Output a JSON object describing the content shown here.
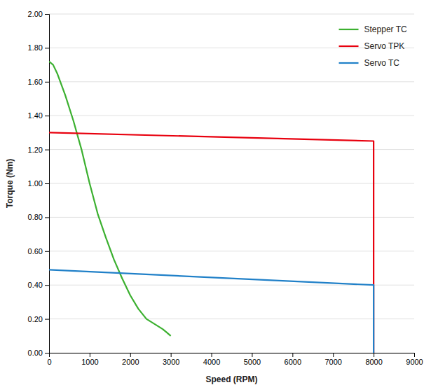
{
  "chart_data": {
    "type": "line",
    "xlabel": "Speed (RPM)",
    "ylabel": "Torque (Nm)",
    "xlim": [
      0,
      9000
    ],
    "ylim": [
      0.0,
      2.0
    ],
    "xticks": [
      0,
      1000,
      2000,
      3000,
      4000,
      5000,
      6000,
      7000,
      8000,
      9000
    ],
    "yticks": [
      {
        "value": 0.0,
        "label": "0.00"
      },
      {
        "value": 0.2,
        "label": "0.20"
      },
      {
        "value": 0.4,
        "label": "0.40"
      },
      {
        "value": 0.6,
        "label": "0.60"
      },
      {
        "value": 0.8,
        "label": "0.80"
      },
      {
        "value": 1.0,
        "label": "1.00"
      },
      {
        "value": 1.2,
        "label": "1.20"
      },
      {
        "value": 1.4,
        "label": "1.40"
      },
      {
        "value": 1.6,
        "label": "1.60"
      },
      {
        "value": 1.8,
        "label": "1.80"
      },
      {
        "value": 2.0,
        "label": "2.00"
      }
    ],
    "grid": "y",
    "legend": "upper right",
    "series": [
      {
        "name": "Stepper TC",
        "color": "#3cb030",
        "x": [
          0,
          100,
          200,
          400,
          600,
          800,
          1000,
          1200,
          1400,
          1600,
          1800,
          2000,
          2200,
          2400,
          2600,
          2800,
          2900,
          3000
        ],
        "values": [
          1.72,
          1.7,
          1.65,
          1.52,
          1.37,
          1.2,
          1.0,
          0.82,
          0.68,
          0.55,
          0.44,
          0.34,
          0.26,
          0.2,
          0.17,
          0.14,
          0.12,
          0.1
        ]
      },
      {
        "name": "Servo TPK",
        "color": "#e8000e",
        "x": [
          0,
          8000,
          8000
        ],
        "values": [
          1.3,
          1.25,
          0.0
        ]
      },
      {
        "name": "Servo TC",
        "color": "#2080c8",
        "x": [
          0,
          8000,
          8000
        ],
        "values": [
          0.49,
          0.4,
          0.0
        ]
      }
    ]
  }
}
